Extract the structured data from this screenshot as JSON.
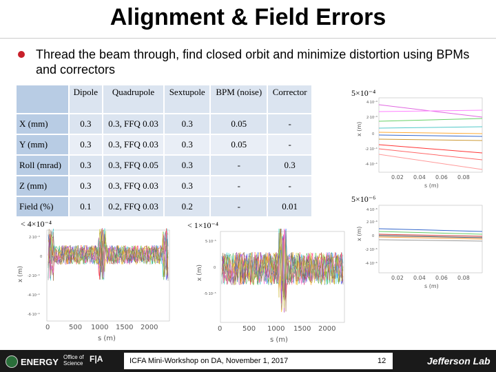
{
  "title": "Alignment & Field Errors",
  "bullet": "Thread the beam through, find closed orbit and minimize distortion using BPMs and correctors",
  "table": {
    "headers": [
      "",
      "Dipole",
      "Quadrupole",
      "Sextupole",
      "BPM (noise)",
      "Corrector"
    ],
    "rows": [
      [
        "X (mm)",
        "0.3",
        "0.3, FFQ 0.03",
        "0.3",
        "0.05",
        "-"
      ],
      [
        "Y (mm)",
        "0.3",
        "0.3, FFQ 0.03",
        "0.3",
        "0.05",
        "-"
      ],
      [
        "Roll (mrad)",
        "0.3",
        "0.3, FFQ 0.05",
        "0.3",
        "-",
        "0.3"
      ],
      [
        "Z (mm)",
        "0.3",
        "0.3, FFQ 0.03",
        "0.3",
        "-",
        "-"
      ],
      [
        "Field (%)",
        "0.1",
        "0.2, FFQ 0.03",
        "0.2",
        "-",
        "0.01"
      ]
    ]
  },
  "plots": {
    "top_right_label": "5×10⁻⁴",
    "mid_right_label": "5×10⁻⁶",
    "left_label": "< 4×10⁻⁴",
    "center_label": "< 1×10⁻⁴",
    "s_axis_label": "s (m)",
    "x_axis_label": "x (m)",
    "long_ticks": [
      "0",
      "500",
      "1000",
      "1500",
      "2000"
    ],
    "short_ticks": [
      "0.02",
      "0.04",
      "0.06",
      "0.08"
    ],
    "left_yticks": [
      "2·10⁻⁴",
      "0",
      "-2·10⁻⁴",
      "-4·10⁻⁴",
      "-6·10⁻⁴"
    ],
    "center_yticks": [
      "5·10⁻⁵",
      "0",
      "-5·10⁻⁵"
    ],
    "tr_yticks": [
      "4·10⁻⁴",
      "2·10⁻⁴",
      "0",
      "-2·10⁻⁴",
      "-4·10⁻⁴"
    ],
    "mr_yticks": [
      "4·10⁻⁶",
      "2·10⁻⁶",
      "0",
      "-2·10⁻⁶",
      "-4·10⁻⁶"
    ]
  },
  "footer": {
    "text": "ICFA Mini-Workshop on DA, November 1, 2017",
    "page": "12",
    "doe": "ENERGY",
    "office": [
      "Office of",
      "Science"
    ],
    "jlab": "Jefferson Lab",
    "fla": "F|A"
  }
}
